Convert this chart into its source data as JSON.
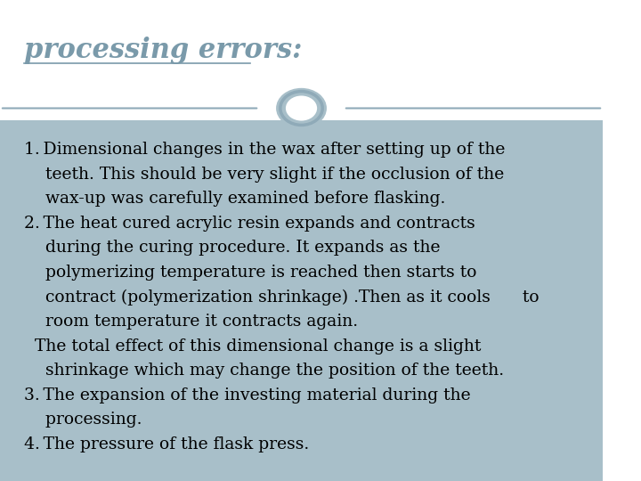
{
  "title": "processing errors:",
  "title_color": "#7a9aaa",
  "title_fontsize": 22,
  "title_style": "italic",
  "title_weight": "bold",
  "bg_top": "#ffffff",
  "divider_color": "#8faab8",
  "body_bg": "#a8bfc9",
  "text_color": "#000000",
  "body_text_fontsize": 13.5,
  "lines": [
    "1. Dimensional changes in the wax after setting up of the",
    "    teeth. This should be very slight if the occlusion of the",
    "    wax-up was carefully examined before flasking.",
    "2. The heat cured acrylic resin expands and contracts",
    "    during the curing procedure. It expands as the",
    "    polymerizing temperature is reached then starts to",
    "    contract (polymerization shrinkage) .Then as it cools      to",
    "    room temperature it contracts again.",
    "  The total effect of this dimensional change is a slight",
    "    shrinkage which may change the position of the teeth.",
    "3. The expansion of the investing material during the",
    "    processing.",
    "4. The pressure of the flask press."
  ]
}
